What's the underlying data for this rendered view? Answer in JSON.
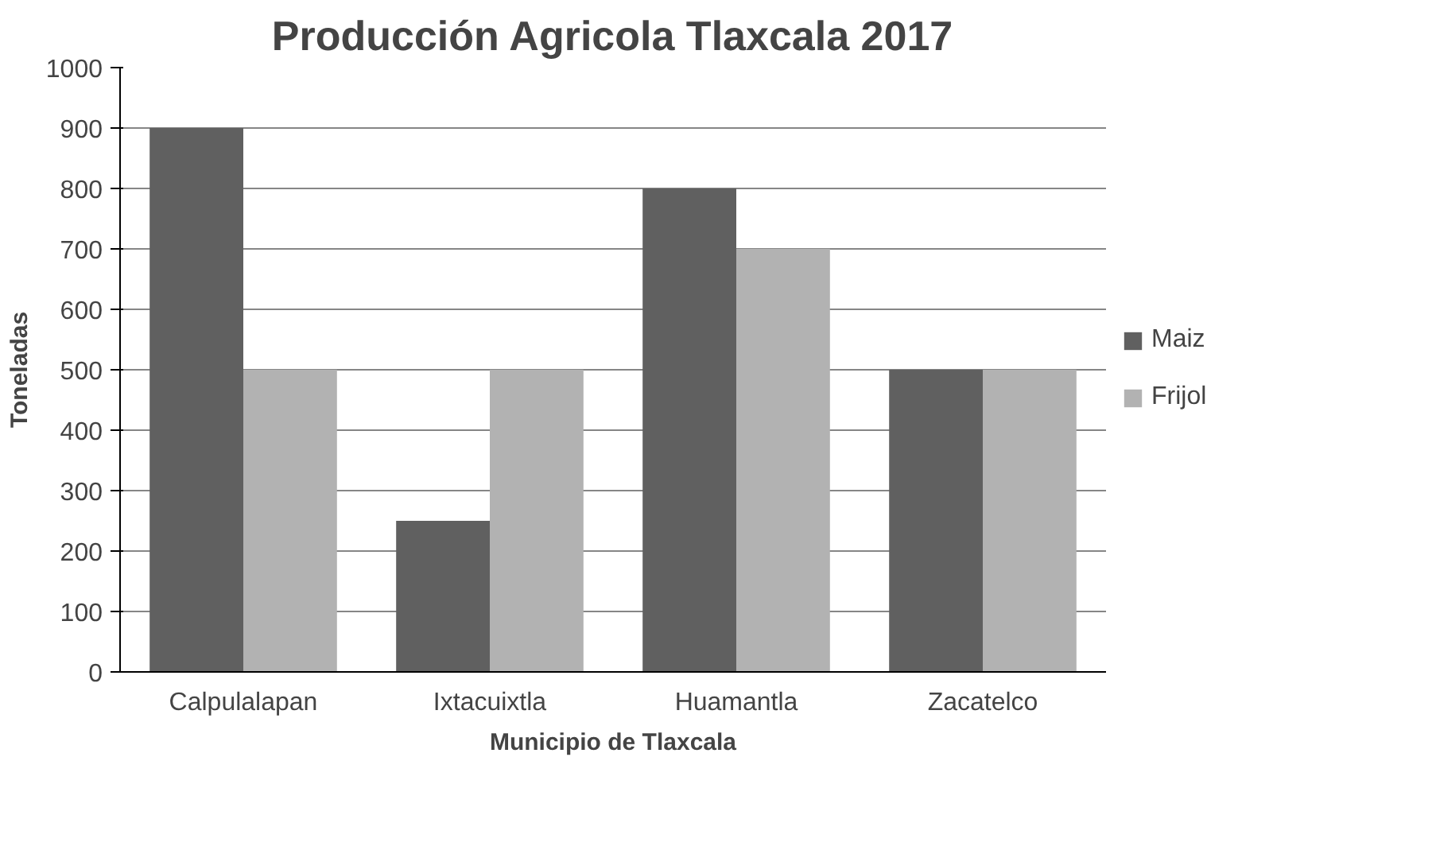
{
  "chart_data": {
    "type": "bar",
    "title": "Producción Agricola Tlaxcala 2017",
    "xlabel": "Municipio de Tlaxcala",
    "ylabel": "Toneladas",
    "categories": [
      "Calpulalapan",
      "Ixtacuixtla",
      "Huamantla",
      "Zacatelco"
    ],
    "series": [
      {
        "name": "Maiz",
        "color": "#606060",
        "values": [
          900,
          250,
          800,
          500
        ]
      },
      {
        "name": "Frijol",
        "color": "#b2b2b2",
        "values": [
          500,
          500,
          700,
          500
        ]
      }
    ],
    "ylim": [
      0,
      1000
    ],
    "yticks": [
      0,
      100,
      200,
      300,
      400,
      500,
      600,
      700,
      800,
      900,
      1000
    ],
    "grid": "y",
    "legend": "right"
  }
}
